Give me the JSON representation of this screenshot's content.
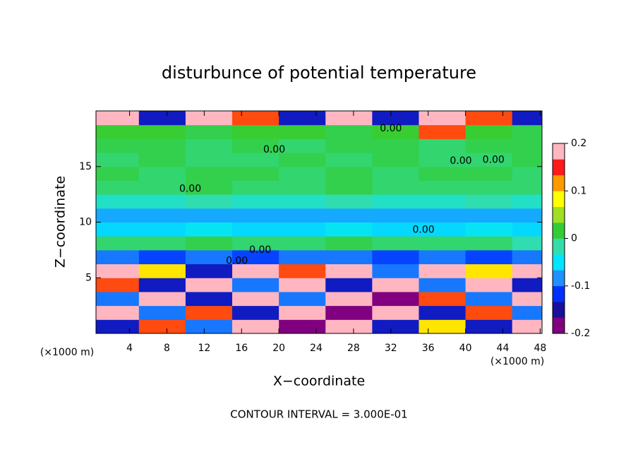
{
  "chart_data": {
    "type": "heatmap",
    "title": "disturbunce of potential temperature",
    "x_label": "X−coordinate",
    "y_label": "Z−coordinate",
    "x_unit_left": "(×1000 m)",
    "x_unit_right": "(×1000 m)",
    "footer": "CONTOUR INTERVAL = 3.000E-01",
    "xlim": [
      0.4,
      48.2
    ],
    "ylim": [
      0,
      20
    ],
    "xticks": [
      4,
      8,
      12,
      16,
      20,
      24,
      28,
      32,
      36,
      40,
      44,
      48
    ],
    "yticks": [
      5,
      10,
      15
    ],
    "xbins": [
      0,
      5,
      10,
      15,
      20,
      25,
      30,
      35,
      40,
      45,
      50
    ],
    "zbins": [
      0,
      1.25,
      2.5,
      3.75,
      5,
      6.25,
      7.5,
      8.75,
      10,
      11.25,
      12.5,
      13.75,
      15,
      16.25,
      17.5,
      18.75,
      20
    ],
    "values": [
      [
        -0.15,
        0.15,
        -0.1,
        0.2,
        -0.2,
        0.2,
        -0.15,
        0.1,
        -0.15,
        0.2
      ],
      [
        0.2,
        -0.1,
        0.15,
        -0.15,
        0.2,
        -0.2,
        0.2,
        -0.15,
        0.15,
        -0.1
      ],
      [
        -0.1,
        0.2,
        -0.15,
        0.2,
        -0.1,
        0.2,
        -0.2,
        0.15,
        -0.1,
        0.2
      ],
      [
        0.15,
        -0.15,
        0.2,
        -0.1,
        0.2,
        -0.15,
        0.2,
        -0.1,
        0.2,
        -0.15
      ],
      [
        0.2,
        0.1,
        -0.15,
        0.2,
        0.15,
        0.2,
        -0.1,
        0.2,
        0.1,
        0.2
      ],
      [
        -0.1,
        -0.12,
        -0.1,
        -0.12,
        -0.1,
        -0.1,
        -0.12,
        -0.1,
        -0.12,
        -0.1
      ],
      [
        0,
        0,
        0.01,
        0,
        0,
        0.01,
        0,
        0,
        0,
        -0.02
      ],
      [
        -0.06,
        -0.06,
        -0.05,
        -0.06,
        -0.06,
        -0.05,
        -0.06,
        -0.06,
        -0.05,
        -0.06
      ],
      [
        -0.08,
        -0.08,
        -0.08,
        -0.08,
        -0.08,
        -0.08,
        -0.08,
        -0.08,
        -0.08,
        -0.08
      ],
      [
        -0.03,
        -0.03,
        -0.02,
        -0.03,
        -0.03,
        -0.02,
        -0.03,
        -0.03,
        -0.02,
        -0.03
      ],
      [
        0,
        0,
        0.01,
        0,
        0,
        0.01,
        0,
        0,
        0,
        0
      ],
      [
        0.01,
        0,
        0.01,
        0.01,
        0,
        0.01,
        0,
        0.01,
        0.01,
        0
      ],
      [
        0,
        0.01,
        0,
        0,
        0.01,
        0,
        0.01,
        0,
        0,
        0.01
      ],
      [
        0.01,
        0.01,
        0,
        0.01,
        0,
        0.01,
        0.01,
        0,
        0.01,
        0.01
      ],
      [
        0.02,
        0.02,
        0.01,
        0.02,
        0.02,
        0.01,
        0.02,
        0.15,
        0.02,
        0.01
      ],
      [
        0.2,
        -0.15,
        0.2,
        0.15,
        -0.15,
        0.2,
        -0.15,
        0.2,
        0.15,
        -0.15
      ]
    ],
    "colorscale": [
      "#800080",
      "#1a0f9c",
      "#0030ff",
      "#1e90ff",
      "#00e5ff",
      "#33ddaa",
      "#33cc33",
      "#a0e020",
      "#ffff00",
      "#ff9900",
      "#ff1a1a",
      "#ffb6c1"
    ],
    "colorbar_lim": [
      -0.2,
      0.2
    ],
    "colorbar_ticks": [
      0.2,
      0.1,
      0,
      -0.1,
      -0.2
    ],
    "contour_labels": [
      {
        "text": "0.00",
        "x": 10.5,
        "z": 13
      },
      {
        "text": "0.00",
        "x": 18,
        "z": 7.5
      },
      {
        "text": "0.00",
        "x": 15.5,
        "z": 6.5
      },
      {
        "text": "0.00",
        "x": 19.5,
        "z": 16.5
      },
      {
        "text": "0.00",
        "x": 35.5,
        "z": 9.3
      },
      {
        "text": "0.00",
        "x": 39.5,
        "z": 15.5
      },
      {
        "text": "0.00",
        "x": 43,
        "z": 15.6
      },
      {
        "text": "0.00",
        "x": 32,
        "z": 18.4
      }
    ]
  }
}
